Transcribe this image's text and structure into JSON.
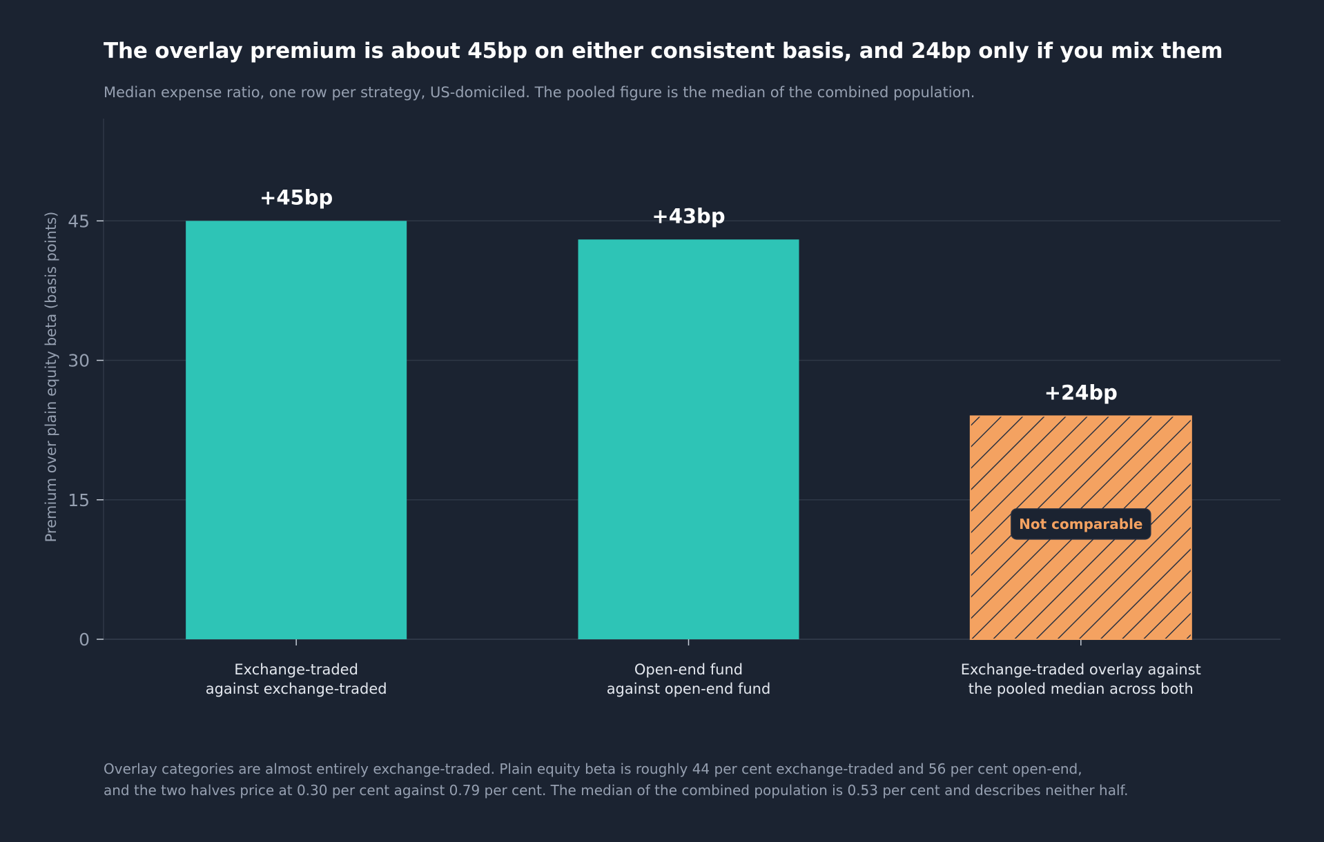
{
  "title": "The overlay premium is about 45bp on either consistent basis, and 24bp only if you mix them",
  "subtitle": "Median expense ratio, one row per strategy, US-domiciled. The pooled figure is the median of the combined population.",
  "footnote": {
    "line1": "Overlay categories are almost entirely exchange-traded. Plain equity beta is roughly 44 per cent exchange-traded and 56 per cent open-end,",
    "line2": "and the two halves price at 0.30 per cent against 0.79 per cent. The median of the combined population is 0.53 per cent and describes neither half."
  },
  "colors": {
    "background": "#1b2331",
    "consistent_bar": "#2ec4b6",
    "mixed_bar": "#f4a261",
    "hatch": "#2a3140",
    "grid": "#2f3847",
    "axis_text": "#96a0b1",
    "category_text": "#e3e7ee"
  },
  "chart_data": {
    "type": "bar",
    "ylabel": "Premium over plain equity beta (basis points)",
    "ylim": [
      0,
      56
    ],
    "yticks": [
      0,
      15,
      30,
      45
    ],
    "grid": true,
    "categories": [
      [
        "Exchange-traded",
        "against exchange-traded"
      ],
      [
        "Open-end fund",
        "against open-end fund"
      ],
      [
        "Exchange-traded overlay against",
        "the pooled median across both"
      ]
    ],
    "values": [
      45,
      43,
      24
    ],
    "data_labels": [
      "+45bp",
      "+43bp",
      "+24bp"
    ],
    "styles": [
      "solid",
      "solid",
      "hatched"
    ],
    "annotations": [
      {
        "category_index": 2,
        "value": 12.4,
        "text": "Not comparable"
      }
    ]
  }
}
